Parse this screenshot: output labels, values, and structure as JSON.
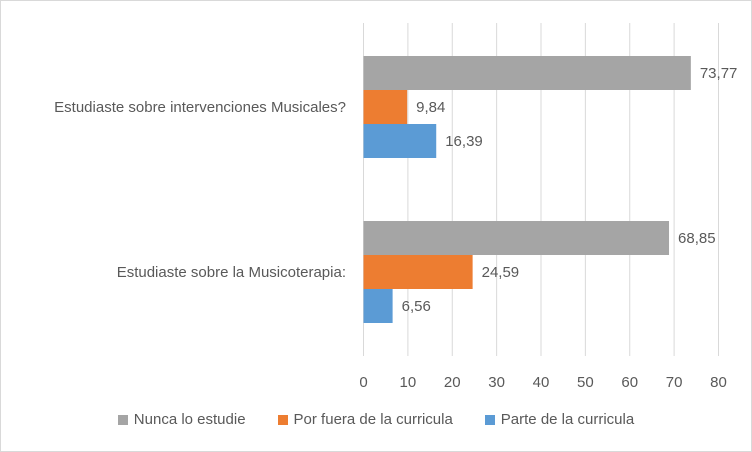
{
  "chart_data": {
    "type": "bar",
    "orientation": "horizontal",
    "categories": [
      "Estudiaste sobre intervenciones Musicales?",
      "Estudiaste sobre la Musicoterapia:"
    ],
    "series": [
      {
        "name": "Nunca lo estudie",
        "color": "#a5a5a5",
        "values": [
          73.77,
          68.85
        ],
        "labels": [
          "73,77",
          "68,85"
        ]
      },
      {
        "name": "Por fuera de la curricula",
        "color": "#ed7d31",
        "values": [
          9.84,
          24.59
        ],
        "labels": [
          "9,84",
          "24,59"
        ]
      },
      {
        "name": "Parte de la curricula",
        "color": "#5b9bd5",
        "values": [
          16.39,
          6.56
        ],
        "labels": [
          "16,39",
          "6,56"
        ]
      }
    ],
    "xlim": [
      0,
      80
    ],
    "xticks": [
      0,
      10,
      20,
      30,
      40,
      50,
      60,
      70,
      80
    ],
    "grid": true,
    "legend": "bottom"
  }
}
